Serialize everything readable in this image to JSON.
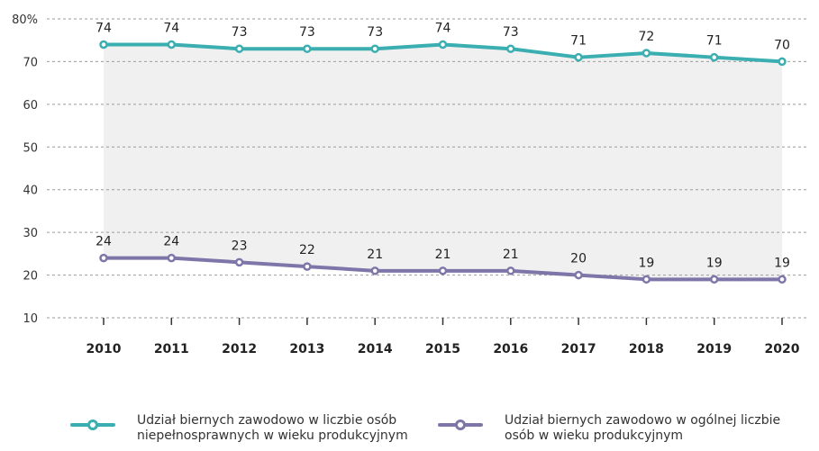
{
  "chart_data": {
    "type": "line",
    "title": "",
    "xlabel": "",
    "ylabel": "",
    "categories": [
      "2010",
      "2011",
      "2012",
      "2013",
      "2014",
      "2015",
      "2016",
      "2017",
      "2018",
      "2019",
      "2020"
    ],
    "ylim": [
      10,
      80
    ],
    "yticks": [
      "80%",
      "70",
      "60",
      "50",
      "40",
      "30",
      "20",
      "10"
    ],
    "grid": "horizontal-dashed",
    "legend": "bottom",
    "series": [
      {
        "name": "Udział biernych zawodowo  w liczbie osób niepełnosprawnych w wieku produkcyjnym",
        "values": [
          74,
          74,
          73,
          73,
          73,
          74,
          73,
          71,
          72,
          71,
          70
        ],
        "color": "#3aaeb0"
      },
      {
        "name": "Udział biernych zawodowo w ogólnej liczbie osób w wieku produkcyjnym",
        "values": [
          24,
          24,
          23,
          22,
          21,
          21,
          21,
          20,
          19,
          19,
          19
        ],
        "color": "#7e76a8"
      }
    ],
    "area_fill_color": "#f0f0f0"
  },
  "legend": {
    "item1": "Udział biernych zawodowo  w liczbie osób niepełnosprawnych w wieku produkcyjnym",
    "item2": "Udział biernych zawodowo w ogólnej liczbie osób w wieku produkcyjnym"
  }
}
